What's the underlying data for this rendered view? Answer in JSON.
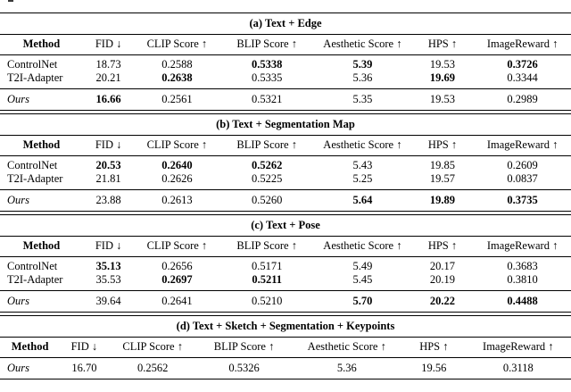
{
  "colors": {
    "background": "#ffffff",
    "text": "#000000",
    "rule": "#000000"
  },
  "tables": [
    {
      "id": "a",
      "caption": "(a) Text + Edge",
      "headers": [
        "Method",
        "FID ↓",
        "CLIP Score ↑",
        "BLIP Score ↑",
        "Aesthetic Score ↑",
        "HPS ↑",
        "ImageReward ↑"
      ],
      "rows": [
        {
          "method": "ControlNet",
          "ours": false,
          "values": [
            "18.73",
            "0.2588",
            "0.5338",
            "5.39",
            "19.53",
            "0.3726"
          ],
          "bold": [
            false,
            false,
            true,
            true,
            false,
            true
          ]
        },
        {
          "method": "T2I-Adapter",
          "ours": false,
          "values": [
            "20.21",
            "0.2638",
            "0.5335",
            "5.36",
            "19.69",
            "0.3344"
          ],
          "bold": [
            false,
            true,
            false,
            false,
            true,
            false
          ]
        },
        {
          "method": "Ours",
          "ours": true,
          "values": [
            "16.66",
            "0.2561",
            "0.5321",
            "5.35",
            "19.53",
            "0.2989"
          ],
          "bold": [
            true,
            false,
            false,
            false,
            false,
            false
          ]
        }
      ]
    },
    {
      "id": "b",
      "caption": "(b) Text + Segmentation Map",
      "headers": [
        "Method",
        "FID ↓",
        "CLIP Score ↑",
        "BLIP Score ↑",
        "Aesthetic Score ↑",
        "HPS ↑",
        "ImageReward ↑"
      ],
      "rows": [
        {
          "method": "ControlNet",
          "ours": false,
          "values": [
            "20.53",
            "0.2640",
            "0.5262",
            "5.43",
            "19.85",
            "0.2609"
          ],
          "bold": [
            true,
            true,
            true,
            false,
            false,
            false
          ]
        },
        {
          "method": "T2I-Adapter",
          "ours": false,
          "values": [
            "21.81",
            "0.2626",
            "0.5225",
            "5.25",
            "19.57",
            "0.0837"
          ],
          "bold": [
            false,
            false,
            false,
            false,
            false,
            false
          ]
        },
        {
          "method": "Ours",
          "ours": true,
          "values": [
            "23.88",
            "0.2613",
            "0.5260",
            "5.64",
            "19.89",
            "0.3735"
          ],
          "bold": [
            false,
            false,
            false,
            true,
            true,
            true
          ]
        }
      ]
    },
    {
      "id": "c",
      "caption": "(c) Text + Pose",
      "headers": [
        "Method",
        "FID ↓",
        "CLIP Score ↑",
        "BLIP Score ↑",
        "Aesthetic Score ↑",
        "HPS ↑",
        "ImageReward ↑"
      ],
      "rows": [
        {
          "method": "ControlNet",
          "ours": false,
          "values": [
            "35.13",
            "0.2656",
            "0.5171",
            "5.49",
            "20.17",
            "0.3683"
          ],
          "bold": [
            true,
            false,
            false,
            false,
            false,
            false
          ]
        },
        {
          "method": "T2I-Adapter",
          "ours": false,
          "values": [
            "35.53",
            "0.2697",
            "0.5211",
            "5.45",
            "20.19",
            "0.3810"
          ],
          "bold": [
            false,
            true,
            true,
            false,
            false,
            false
          ]
        },
        {
          "method": "Ours",
          "ours": true,
          "values": [
            "39.64",
            "0.2641",
            "0.5210",
            "5.70",
            "20.22",
            "0.4488"
          ],
          "bold": [
            false,
            false,
            false,
            true,
            true,
            true
          ]
        }
      ]
    },
    {
      "id": "d",
      "caption": "(d) Text + Sketch + Segmentation + Keypoints",
      "headers": [
        "Method",
        "FID ↓",
        "CLIP Score ↑",
        "BLIP Score ↑",
        "Aesthetic Score ↑",
        "HPS ↑",
        "ImageReward ↑"
      ],
      "rows": [
        {
          "method": "Ours",
          "ours": true,
          "values": [
            "16.70",
            "0.2562",
            "0.5326",
            "5.36",
            "19.56",
            "0.3118"
          ],
          "bold": [
            false,
            false,
            false,
            false,
            false,
            false
          ]
        }
      ]
    }
  ]
}
